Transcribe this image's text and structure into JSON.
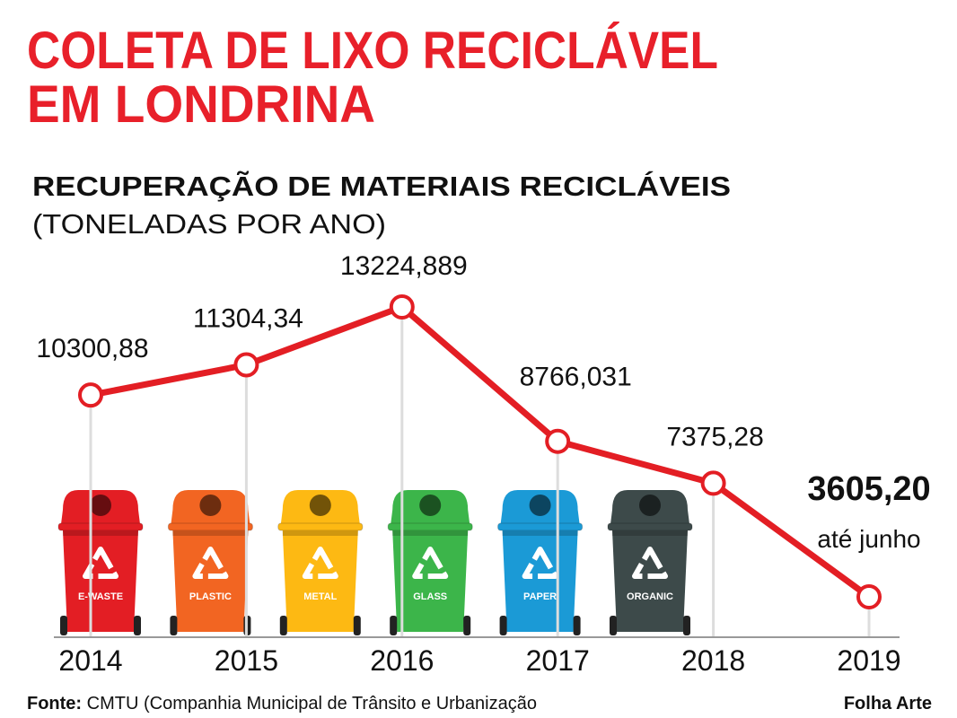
{
  "chart_data": {
    "type": "line",
    "title_lines": [
      "COLETA DE LIXO RECICLÁVEL",
      "EM LONDRINA"
    ],
    "subtitle": "RECUPERAÇÃO DE MATERIAIS RECICLÁVEIS",
    "subtitle_unit": "(TONELADAS POR ANO)",
    "categories": [
      "2014",
      "2015",
      "2016",
      "2017",
      "2018",
      "2019"
    ],
    "values": [
      10300.88,
      11304.34,
      13224.889,
      8766.031,
      7375.28,
      3605.2
    ],
    "value_labels": [
      "10300,88",
      "11304,34",
      "13224,889",
      "8766,031",
      "7375,28",
      "3605,20"
    ],
    "annotation": "até junho",
    "color": "#e31e24"
  },
  "bins": [
    {
      "label": "E-WASTE",
      "color": "#e31e24"
    },
    {
      "label": "PLASTIC",
      "color": "#f26522"
    },
    {
      "label": "METAL",
      "color": "#fdb913"
    },
    {
      "label": "GLASS",
      "color": "#3cb54a"
    },
    {
      "label": "PAPER",
      "color": "#1b9ad6"
    },
    {
      "label": "ORGANIC",
      "color": "#3d4a4a"
    }
  ],
  "footer": {
    "source_label": "Fonte:",
    "source": " CMTU (Companhia Municipal de Trânsito e Urbanização",
    "credit": "Folha Arte"
  }
}
